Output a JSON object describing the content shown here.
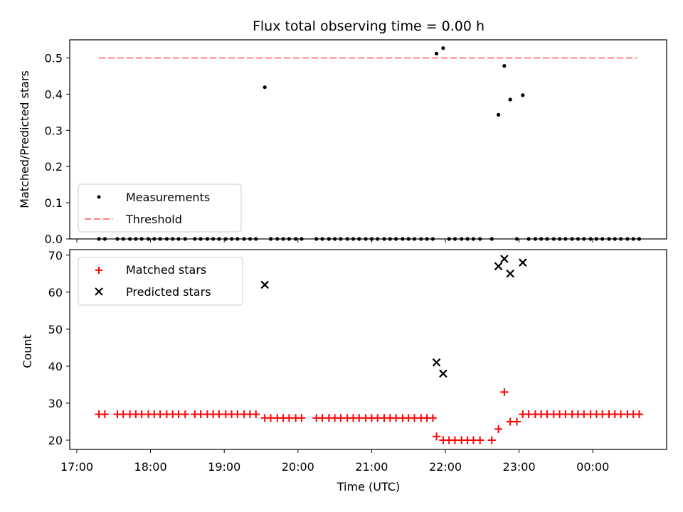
{
  "chart_data": [
    {
      "type": "scatter",
      "title": "Flux total observing time = 0.00 h",
      "xlabel": "",
      "ylabel": "Matched/Predicted stars",
      "ylim": [
        0,
        0.55
      ],
      "yticks": [
        "0.0",
        "0.1",
        "0.2",
        "0.3",
        "0.4",
        "0.5"
      ],
      "xtick_hours": [
        17,
        18,
        19,
        20,
        21,
        22,
        23,
        24
      ],
      "legend": {
        "placement": "lower-left",
        "entries": [
          "Measurements",
          "Threshold"
        ]
      },
      "threshold": {
        "name": "Threshold",
        "value": 0.5,
        "x_range": [
          17.3,
          24.6
        ],
        "color": "#ff7f7f"
      },
      "series": [
        {
          "name": "Measurements",
          "color": "#000000",
          "marker": "dot",
          "points": [
            [
              17.3,
              0
            ],
            [
              17.38,
              0
            ],
            [
              17.55,
              0
            ],
            [
              17.63,
              0
            ],
            [
              17.72,
              0
            ],
            [
              17.8,
              0
            ],
            [
              17.88,
              0
            ],
            [
              17.97,
              0
            ],
            [
              18.05,
              0
            ],
            [
              18.13,
              0
            ],
            [
              18.22,
              0
            ],
            [
              18.3,
              0
            ],
            [
              18.38,
              0
            ],
            [
              18.47,
              0
            ],
            [
              18.6,
              0
            ],
            [
              18.68,
              0
            ],
            [
              18.77,
              0
            ],
            [
              18.85,
              0
            ],
            [
              18.93,
              0
            ],
            [
              19.02,
              0
            ],
            [
              19.1,
              0
            ],
            [
              19.18,
              0
            ],
            [
              19.27,
              0
            ],
            [
              19.35,
              0
            ],
            [
              19.43,
              0
            ],
            [
              19.55,
              0.419
            ],
            [
              19.63,
              0
            ],
            [
              19.72,
              0
            ],
            [
              19.8,
              0
            ],
            [
              19.88,
              0
            ],
            [
              19.97,
              0
            ],
            [
              20.05,
              0
            ],
            [
              20.25,
              0
            ],
            [
              20.33,
              0
            ],
            [
              20.42,
              0
            ],
            [
              20.5,
              0
            ],
            [
              20.58,
              0
            ],
            [
              20.67,
              0
            ],
            [
              20.75,
              0
            ],
            [
              20.83,
              0
            ],
            [
              20.92,
              0
            ],
            [
              21.0,
              0
            ],
            [
              21.08,
              0
            ],
            [
              21.17,
              0
            ],
            [
              21.25,
              0
            ],
            [
              21.33,
              0
            ],
            [
              21.42,
              0
            ],
            [
              21.5,
              0
            ],
            [
              21.58,
              0
            ],
            [
              21.67,
              0
            ],
            [
              21.75,
              0
            ],
            [
              21.83,
              0
            ],
            [
              21.88,
              0.512
            ],
            [
              21.97,
              0.527
            ],
            [
              22.05,
              0
            ],
            [
              22.13,
              0
            ],
            [
              22.22,
              0
            ],
            [
              22.3,
              0
            ],
            [
              22.38,
              0
            ],
            [
              22.47,
              0
            ],
            [
              22.63,
              0
            ],
            [
              22.72,
              0.343
            ],
            [
              22.8,
              0.478
            ],
            [
              22.88,
              0.385
            ],
            [
              22.97,
              0
            ],
            [
              23.05,
              0.397
            ],
            [
              23.13,
              0
            ],
            [
              23.22,
              0
            ],
            [
              23.3,
              0
            ],
            [
              23.38,
              0
            ],
            [
              23.47,
              0
            ],
            [
              23.55,
              0
            ],
            [
              23.63,
              0
            ],
            [
              23.72,
              0
            ],
            [
              23.8,
              0
            ],
            [
              23.88,
              0
            ],
            [
              23.97,
              0
            ],
            [
              24.05,
              0
            ],
            [
              24.13,
              0
            ],
            [
              24.22,
              0
            ],
            [
              24.3,
              0
            ],
            [
              24.38,
              0
            ],
            [
              24.47,
              0
            ],
            [
              24.55,
              0
            ],
            [
              24.63,
              0
            ]
          ]
        }
      ]
    },
    {
      "type": "scatter",
      "title": "",
      "xlabel": "Time (UTC)",
      "ylabel": "Count",
      "ylim": [
        17.5,
        71.5
      ],
      "yticks": [
        "20",
        "30",
        "40",
        "50",
        "60",
        "70"
      ],
      "xtick_hours": [
        17,
        18,
        19,
        20,
        21,
        22,
        23,
        24
      ],
      "xtick_labels": [
        "17:00",
        "18:00",
        "19:00",
        "20:00",
        "21:00",
        "22:00",
        "23:00",
        "00:00"
      ],
      "legend": {
        "placement": "upper-left",
        "entries": [
          "Matched stars",
          "Predicted stars"
        ]
      },
      "series": [
        {
          "name": "Matched stars",
          "color": "#ff0000",
          "marker": "plus",
          "points": [
            [
              17.3,
              27
            ],
            [
              17.38,
              27
            ],
            [
              17.55,
              27
            ],
            [
              17.63,
              27
            ],
            [
              17.72,
              27
            ],
            [
              17.8,
              27
            ],
            [
              17.88,
              27
            ],
            [
              17.97,
              27
            ],
            [
              18.05,
              27
            ],
            [
              18.13,
              27
            ],
            [
              18.22,
              27
            ],
            [
              18.3,
              27
            ],
            [
              18.38,
              27
            ],
            [
              18.47,
              27
            ],
            [
              18.6,
              27
            ],
            [
              18.68,
              27
            ],
            [
              18.77,
              27
            ],
            [
              18.85,
              27
            ],
            [
              18.93,
              27
            ],
            [
              19.02,
              27
            ],
            [
              19.1,
              27
            ],
            [
              19.18,
              27
            ],
            [
              19.27,
              27
            ],
            [
              19.35,
              27
            ],
            [
              19.43,
              27
            ],
            [
              19.55,
              26
            ],
            [
              19.63,
              26
            ],
            [
              19.72,
              26
            ],
            [
              19.8,
              26
            ],
            [
              19.88,
              26
            ],
            [
              19.97,
              26
            ],
            [
              20.05,
              26
            ],
            [
              20.25,
              26
            ],
            [
              20.33,
              26
            ],
            [
              20.42,
              26
            ],
            [
              20.5,
              26
            ],
            [
              20.58,
              26
            ],
            [
              20.67,
              26
            ],
            [
              20.75,
              26
            ],
            [
              20.83,
              26
            ],
            [
              20.92,
              26
            ],
            [
              21.0,
              26
            ],
            [
              21.08,
              26
            ],
            [
              21.17,
              26
            ],
            [
              21.25,
              26
            ],
            [
              21.33,
              26
            ],
            [
              21.42,
              26
            ],
            [
              21.5,
              26
            ],
            [
              21.58,
              26
            ],
            [
              21.67,
              26
            ],
            [
              21.75,
              26
            ],
            [
              21.83,
              26
            ],
            [
              21.88,
              21
            ],
            [
              21.97,
              20
            ],
            [
              22.05,
              20
            ],
            [
              22.13,
              20
            ],
            [
              22.22,
              20
            ],
            [
              22.3,
              20
            ],
            [
              22.38,
              20
            ],
            [
              22.47,
              20
            ],
            [
              22.63,
              20
            ],
            [
              22.72,
              23
            ],
            [
              22.8,
              33
            ],
            [
              22.88,
              25
            ],
            [
              22.97,
              25
            ],
            [
              23.05,
              27
            ],
            [
              23.13,
              27
            ],
            [
              23.22,
              27
            ],
            [
              23.3,
              27
            ],
            [
              23.38,
              27
            ],
            [
              23.47,
              27
            ],
            [
              23.55,
              27
            ],
            [
              23.63,
              27
            ],
            [
              23.72,
              27
            ],
            [
              23.8,
              27
            ],
            [
              23.88,
              27
            ],
            [
              23.97,
              27
            ],
            [
              24.05,
              27
            ],
            [
              24.13,
              27
            ],
            [
              24.22,
              27
            ],
            [
              24.3,
              27
            ],
            [
              24.38,
              27
            ],
            [
              24.47,
              27
            ],
            [
              24.55,
              27
            ],
            [
              24.63,
              27
            ]
          ]
        },
        {
          "name": "Predicted stars",
          "color": "#000000",
          "marker": "x",
          "points": [
            [
              19.55,
              62
            ],
            [
              21.88,
              41
            ],
            [
              21.97,
              38
            ],
            [
              22.72,
              67
            ],
            [
              22.8,
              69
            ],
            [
              22.88,
              65
            ],
            [
              23.05,
              68
            ]
          ]
        }
      ]
    }
  ]
}
